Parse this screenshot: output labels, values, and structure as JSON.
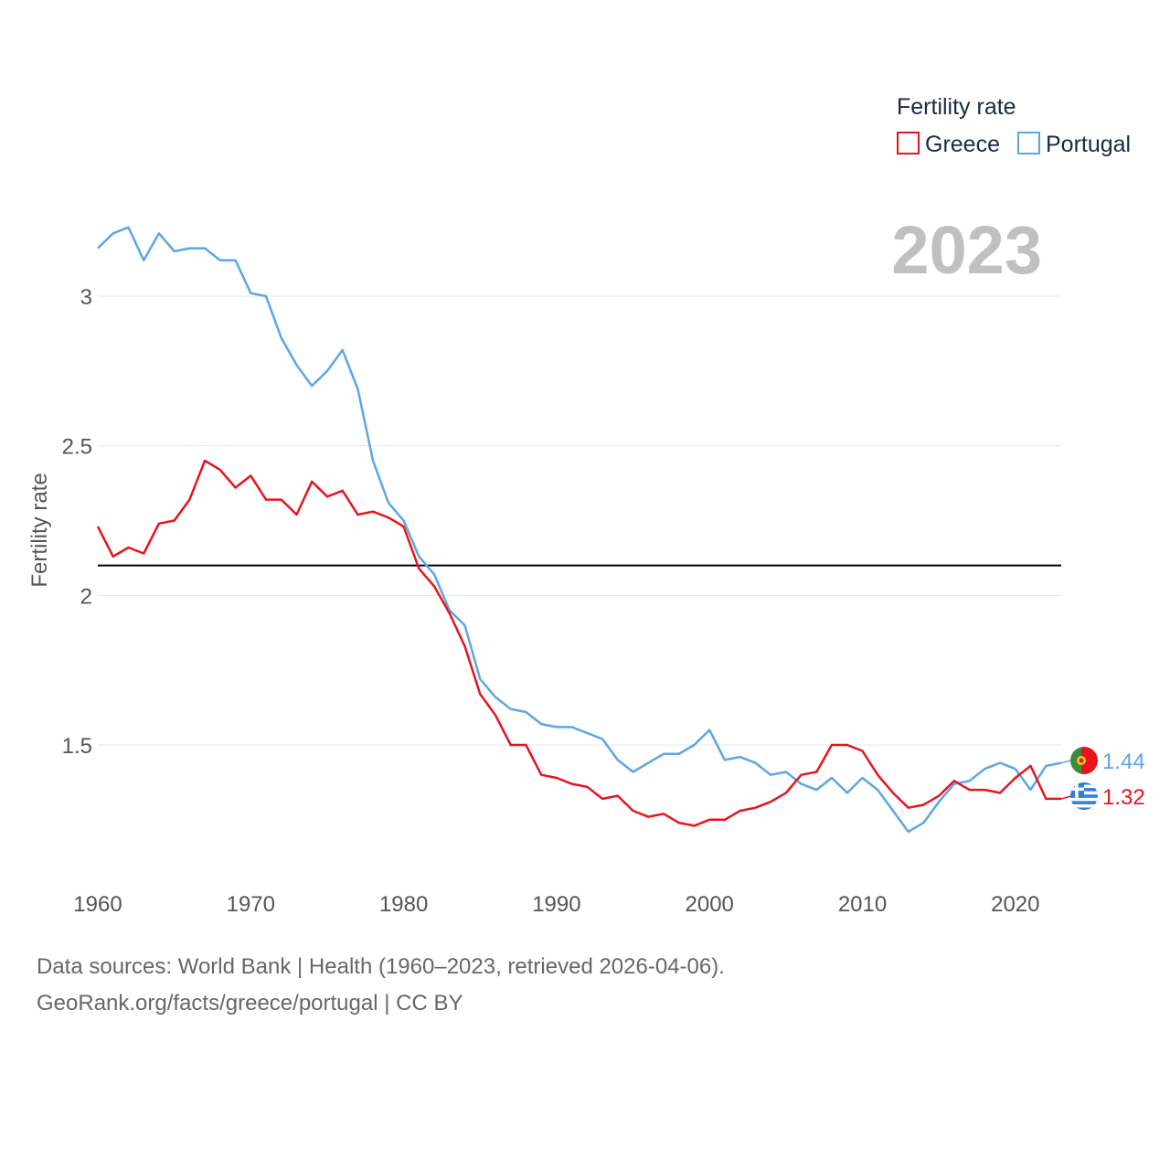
{
  "chart_data": {
    "type": "line",
    "title": "",
    "xlabel": "",
    "ylabel": "Fertility rate",
    "xlim": [
      1960,
      2023
    ],
    "ylim": [
      1.05,
      3.3
    ],
    "x_ticks": [
      1960,
      1970,
      1980,
      1990,
      2000,
      2010,
      2020
    ],
    "y_ticks": [
      1.5,
      2,
      2.5,
      3
    ],
    "y_tick_labels": [
      "1.5",
      "2",
      "2.5",
      "3"
    ],
    "x_tick_labels": [
      "1960",
      "1970",
      "1980",
      "1990",
      "2000",
      "2010",
      "2020"
    ],
    "reference_line": {
      "y": 2.1,
      "color": "#000000"
    },
    "year_label": "2023",
    "legend": {
      "title": "Fertility rate",
      "placement": "top-right"
    },
    "x": [
      1960,
      1961,
      1962,
      1963,
      1964,
      1965,
      1966,
      1967,
      1968,
      1969,
      1970,
      1971,
      1972,
      1973,
      1974,
      1975,
      1976,
      1977,
      1978,
      1979,
      1980,
      1981,
      1982,
      1983,
      1984,
      1985,
      1986,
      1987,
      1988,
      1989,
      1990,
      1991,
      1992,
      1993,
      1994,
      1995,
      1996,
      1997,
      1998,
      1999,
      2000,
      2001,
      2002,
      2003,
      2004,
      2005,
      2006,
      2007,
      2008,
      2009,
      2010,
      2011,
      2012,
      2013,
      2014,
      2015,
      2016,
      2017,
      2018,
      2019,
      2020,
      2021,
      2022,
      2023
    ],
    "series": [
      {
        "name": "Greece",
        "color": "#e8141b",
        "end_label": "1.32",
        "icon": "greece-flag-icon",
        "values": [
          2.23,
          2.13,
          2.16,
          2.14,
          2.24,
          2.25,
          2.32,
          2.45,
          2.42,
          2.36,
          2.4,
          2.32,
          2.32,
          2.27,
          2.38,
          2.33,
          2.35,
          2.27,
          2.28,
          2.26,
          2.23,
          2.09,
          2.03,
          1.94,
          1.83,
          1.67,
          1.6,
          1.5,
          1.5,
          1.4,
          1.39,
          1.37,
          1.36,
          1.32,
          1.33,
          1.28,
          1.26,
          1.27,
          1.24,
          1.23,
          1.25,
          1.25,
          1.28,
          1.29,
          1.31,
          1.34,
          1.4,
          1.41,
          1.5,
          1.5,
          1.48,
          1.4,
          1.34,
          1.29,
          1.3,
          1.33,
          1.38,
          1.35,
          1.35,
          1.34,
          1.39,
          1.43,
          1.32,
          1.32
        ]
      },
      {
        "name": "Portugal",
        "color": "#5ca6e6",
        "end_label": "1.44",
        "icon": "portugal-flag-icon",
        "values": [
          3.16,
          3.21,
          3.23,
          3.12,
          3.21,
          3.15,
          3.16,
          3.16,
          3.12,
          3.12,
          3.01,
          3.0,
          2.86,
          2.77,
          2.7,
          2.75,
          2.82,
          2.69,
          2.45,
          2.31,
          2.25,
          2.13,
          2.07,
          1.95,
          1.9,
          1.72,
          1.66,
          1.62,
          1.61,
          1.57,
          1.56,
          1.56,
          1.54,
          1.52,
          1.45,
          1.41,
          1.44,
          1.47,
          1.47,
          1.5,
          1.55,
          1.45,
          1.46,
          1.44,
          1.4,
          1.41,
          1.37,
          1.35,
          1.39,
          1.34,
          1.39,
          1.35,
          1.28,
          1.21,
          1.24,
          1.31,
          1.37,
          1.38,
          1.42,
          1.44,
          1.42,
          1.35,
          1.43,
          1.44
        ]
      }
    ]
  },
  "footer": {
    "line1": "Data sources: World Bank | Health (1960–2023, retrieved 2026-04-06).",
    "line2": "GeoRank.org/facts/greece/portugal | CC BY"
  }
}
